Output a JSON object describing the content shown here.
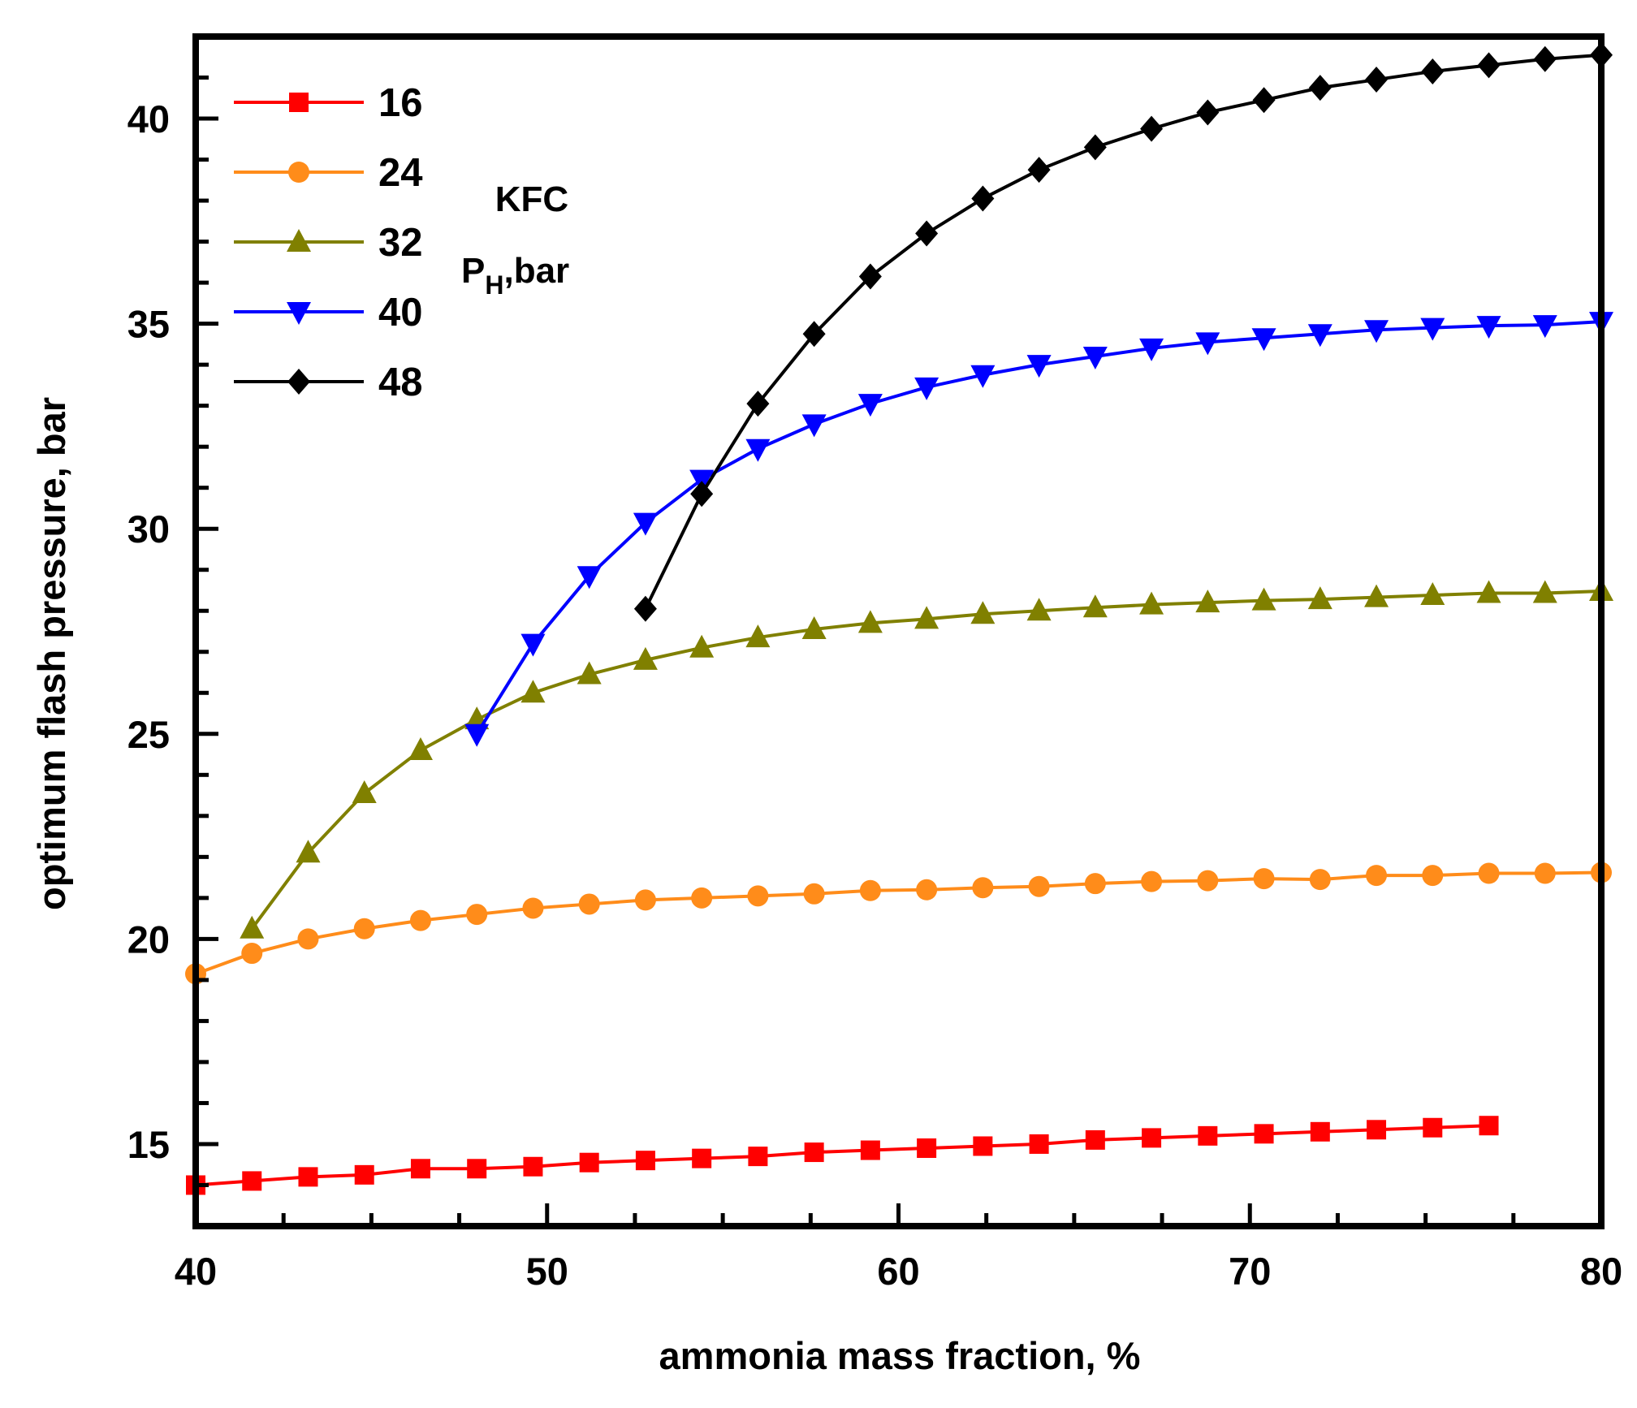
{
  "chart_data": {
    "type": "line",
    "title": "",
    "xlabel": "ammonia mass fraction, %",
    "ylabel": "optimum flash pressure, bar",
    "xlim": [
      40,
      80
    ],
    "ylim": [
      13,
      42
    ],
    "xticks": [
      40,
      50,
      60,
      70,
      80
    ],
    "yticks": [
      15,
      20,
      25,
      30,
      35,
      40
    ],
    "xtick_labels": [
      "40",
      "50",
      "60",
      "70",
      "80"
    ],
    "ytick_labels": [
      "15",
      "20",
      "25",
      "30",
      "35",
      "40"
    ],
    "legend_position": "top-left",
    "annotation": {
      "line1": "KFC",
      "line2_main": "P",
      "line2_sub": "H",
      "line2_rest": ",bar"
    },
    "series": [
      {
        "name": "16",
        "color": "#ff0000",
        "marker": "square",
        "x": [
          40,
          41.6,
          43.2,
          44.8,
          46.4,
          48,
          49.6,
          51.2,
          52.8,
          54.4,
          56,
          57.6,
          59.2,
          60.8,
          62.4,
          64,
          65.6,
          67.2,
          68.8,
          70.4,
          72,
          73.6,
          75.2,
          76.8
        ],
        "y": [
          14.0,
          14.1,
          14.2,
          14.25,
          14.4,
          14.4,
          14.45,
          14.55,
          14.6,
          14.65,
          14.7,
          14.8,
          14.85,
          14.9,
          14.95,
          15.0,
          15.1,
          15.15,
          15.2,
          15.25,
          15.3,
          15.35,
          15.4,
          15.45
        ]
      },
      {
        "name": "24",
        "color": "#ff8c1a",
        "marker": "circle",
        "x": [
          40,
          41.6,
          43.2,
          44.8,
          46.4,
          48,
          49.6,
          51.2,
          52.8,
          54.4,
          56,
          57.6,
          59.2,
          60.8,
          62.4,
          64,
          65.6,
          67.2,
          68.8,
          70.4,
          72,
          73.6,
          75.2,
          76.8,
          78.4,
          80
        ],
        "y": [
          19.15,
          19.65,
          20.0,
          20.25,
          20.45,
          20.6,
          20.75,
          20.85,
          20.95,
          21.0,
          21.05,
          21.1,
          21.18,
          21.2,
          21.25,
          21.28,
          21.35,
          21.4,
          21.42,
          21.47,
          21.45,
          21.55,
          21.55,
          21.6,
          21.6,
          21.62
        ]
      },
      {
        "name": "32",
        "color": "#808000",
        "marker": "triangle-up",
        "x": [
          41.6,
          43.2,
          44.8,
          46.4,
          48,
          49.6,
          51.2,
          52.8,
          54.4,
          56,
          57.6,
          59.2,
          60.8,
          62.4,
          64,
          65.6,
          67.2,
          68.8,
          70.4,
          72,
          73.6,
          75.2,
          76.8,
          78.4,
          80
        ],
        "y": [
          20.25,
          22.1,
          23.55,
          24.6,
          25.35,
          26.0,
          26.45,
          26.8,
          27.1,
          27.35,
          27.55,
          27.7,
          27.8,
          27.92,
          28.0,
          28.08,
          28.15,
          28.2,
          28.25,
          28.28,
          28.33,
          28.38,
          28.43,
          28.43,
          28.48
        ]
      },
      {
        "name": "40",
        "color": "#0000ff",
        "marker": "triangle-down",
        "x": [
          48,
          49.6,
          51.2,
          52.8,
          54.4,
          56,
          57.6,
          59.2,
          60.8,
          62.4,
          64,
          65.6,
          67.2,
          68.8,
          70.4,
          72,
          73.6,
          75.2,
          76.8,
          78.4,
          80
        ],
        "y": [
          25.0,
          27.2,
          28.85,
          30.15,
          31.2,
          31.95,
          32.55,
          33.05,
          33.45,
          33.75,
          34.0,
          34.2,
          34.4,
          34.55,
          34.65,
          34.75,
          34.85,
          34.9,
          34.95,
          34.97,
          35.05
        ]
      },
      {
        "name": "48",
        "color": "#000000",
        "marker": "diamond",
        "x": [
          52.8,
          54.4,
          56,
          57.6,
          59.2,
          60.8,
          62.4,
          64,
          65.6,
          67.2,
          68.8,
          70.4,
          72,
          73.6,
          75.2,
          76.8,
          78.4,
          80
        ],
        "y": [
          28.05,
          30.85,
          33.05,
          34.75,
          36.15,
          37.2,
          38.05,
          38.75,
          39.3,
          39.75,
          40.15,
          40.45,
          40.75,
          40.95,
          41.15,
          41.3,
          41.45,
          41.55
        ]
      }
    ]
  }
}
